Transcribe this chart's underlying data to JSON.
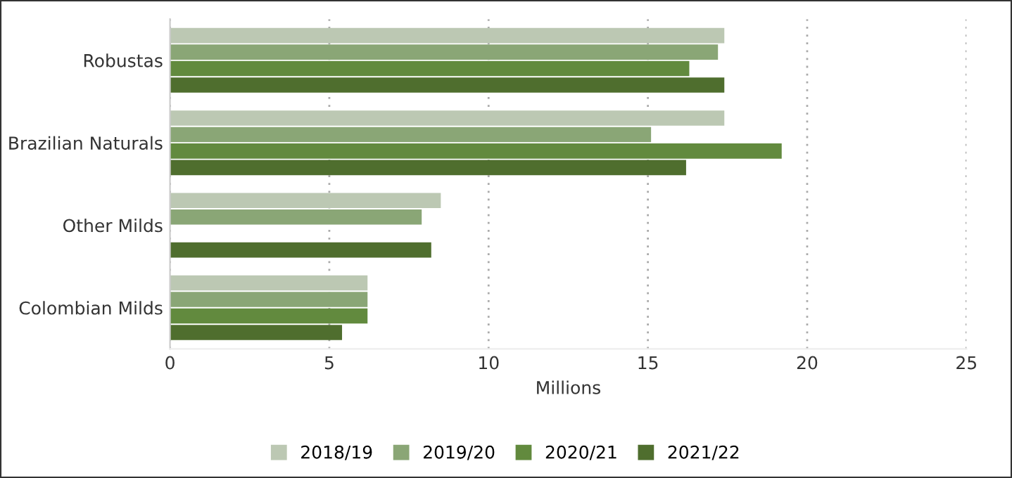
{
  "chart_data": {
    "type": "bar",
    "orientation": "horizontal",
    "xlabel": "Millions",
    "categories": [
      "Robustas",
      "Brazilian Naturals",
      "Other Milds",
      "Colombian Milds"
    ],
    "series": [
      {
        "name": "2018/19",
        "color": "#bcc8b3",
        "values": [
          17.4,
          17.4,
          8.5,
          6.2
        ]
      },
      {
        "name": "2019/20",
        "color": "#8aa676",
        "values": [
          17.2,
          15.1,
          7.9,
          6.2
        ]
      },
      {
        "name": "2020/21",
        "color": "#628a3e",
        "values": [
          16.3,
          19.2,
          null,
          6.2
        ]
      },
      {
        "name": "2021/22",
        "color": "#4f6e2e",
        "values": [
          17.4,
          16.2,
          8.2,
          5.4
        ]
      }
    ],
    "xlim": [
      0,
      25
    ],
    "xticks": [
      0,
      5,
      10,
      15,
      20,
      25
    ],
    "grid": "x",
    "legend": "bottom"
  }
}
